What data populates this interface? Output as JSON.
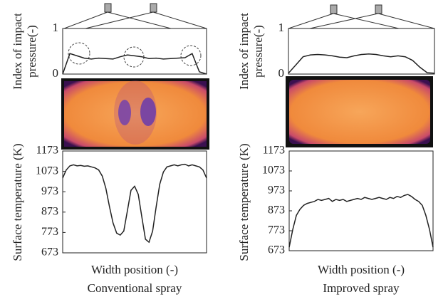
{
  "chart_data": [
    {
      "type": "line",
      "ylabel": [
        "Index of impact",
        "pressure(-)"
      ],
      "ylim": [
        0,
        1
      ],
      "yticks": [
        0,
        1
      ],
      "color": "#222",
      "values": [
        0,
        0.45,
        0.4,
        0.35,
        0.33,
        0.35,
        0.34,
        0.33,
        0.38,
        0.42,
        0.4,
        0.38,
        0.34,
        0.35,
        0.33,
        0.34,
        0.35,
        0.36,
        0.45,
        0.05,
        0
      ]
    },
    {
      "type": "line",
      "ylabel": [
        "Surface temperature (K)"
      ],
      "xlabel": "Width position (-)",
      "title": "Conventional spray",
      "ylim": [
        673,
        1173
      ],
      "yticks": [
        673,
        773,
        873,
        973,
        1073,
        1173
      ],
      "color": "#222",
      "values": [
        1040,
        1080,
        1100,
        1105,
        1100,
        1102,
        1098,
        1100,
        1095,
        1090,
        1080,
        1050,
        990,
        900,
        820,
        770,
        760,
        780,
        880,
        980,
        1000,
        960,
        850,
        740,
        725,
        780,
        900,
        1010,
        1070,
        1095,
        1100,
        1105,
        1100,
        1105,
        1108,
        1100,
        1105,
        1100,
        1095,
        1080,
        1040
      ]
    },
    {
      "type": "line",
      "ylabel": [
        "Index of impact",
        "pressure(-)"
      ],
      "ylim": [
        0,
        1
      ],
      "yticks": [
        0,
        1
      ],
      "color": "#222",
      "values": [
        0.02,
        0.2,
        0.38,
        0.42,
        0.43,
        0.42,
        0.4,
        0.37,
        0.36,
        0.4,
        0.43,
        0.44,
        0.43,
        0.4,
        0.38,
        0.4,
        0.38,
        0.3,
        0.15,
        0.03,
        0.02
      ]
    },
    {
      "type": "line",
      "ylabel": [
        "Surface temperature (K)"
      ],
      "xlabel": "Width position (-)",
      "title": "Improved spray",
      "ylim": [
        673,
        1173
      ],
      "yticks": [
        673,
        773,
        873,
        973,
        1073,
        1173
      ],
      "color": "#222",
      "values": [
        690,
        780,
        850,
        880,
        900,
        910,
        915,
        920,
        930,
        925,
        930,
        935,
        920,
        930,
        925,
        930,
        920,
        925,
        930,
        935,
        930,
        940,
        935,
        930,
        935,
        940,
        935,
        930,
        940,
        935,
        945,
        940,
        950,
        955,
        945,
        930,
        920,
        900,
        850,
        780,
        690
      ]
    }
  ]
}
